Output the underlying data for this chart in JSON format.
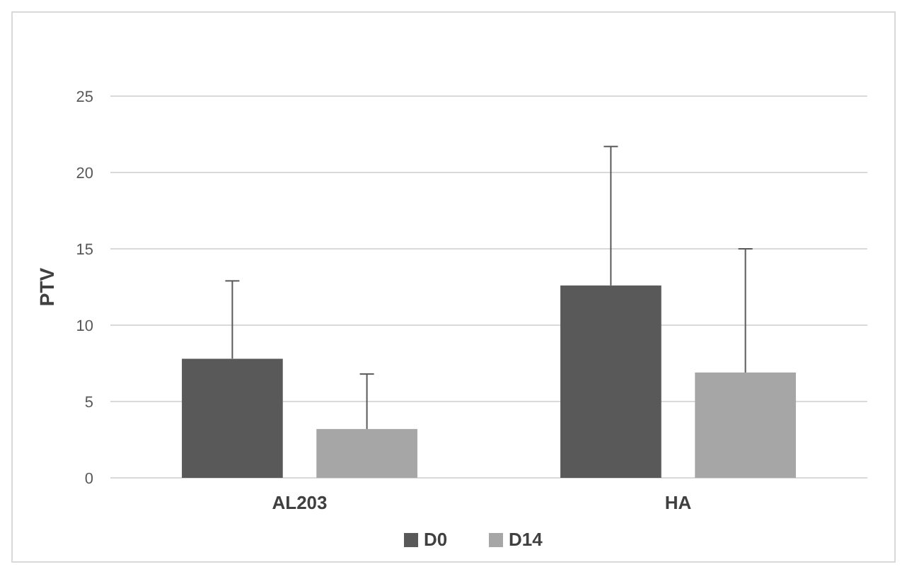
{
  "chart_data": {
    "type": "bar",
    "ylabel": "PTV",
    "categories": [
      "AL203",
      "HA"
    ],
    "series": [
      {
        "name": "D0",
        "color": "#595959",
        "values": [
          7.8,
          12.6
        ],
        "errors": [
          [
            7.8,
            12.9
          ],
          [
            12.6,
            21.7
          ]
        ]
      },
      {
        "name": "D14",
        "color": "#a6a6a6",
        "values": [
          3.2,
          6.9
        ],
        "errors": [
          [
            3.2,
            6.8
          ],
          [
            6.9,
            15.0
          ]
        ]
      }
    ],
    "ylim": [
      0,
      25
    ],
    "yticks": [
      0,
      5,
      10,
      15,
      20,
      25
    ],
    "grid": "y",
    "legend": "bottom"
  }
}
